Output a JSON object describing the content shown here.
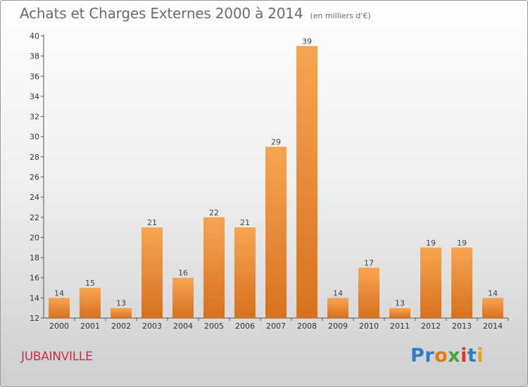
{
  "title": "Achats et Charges Externes 2000 à 2014",
  "unit": "(en milliers d'€)",
  "commune": "JUBAINVILLE",
  "logo": {
    "p1": "Pr",
    "p2": "o",
    "p3": "x",
    "p4": "i",
    "p5": "t",
    "p6": "i"
  },
  "colors": {
    "bar_light": "#f6a552",
    "bar_dark": "#d7711f",
    "axis": "#555555",
    "commune": "#c0304a"
  },
  "chart_data": {
    "type": "bar",
    "title": "Achats et Charges Externes 2000 à 2014",
    "categories": [
      "2000",
      "2001",
      "2002",
      "2003",
      "2004",
      "2005",
      "2006",
      "2007",
      "2008",
      "2009",
      "2010",
      "2011",
      "2012",
      "2013",
      "2014"
    ],
    "values": [
      14,
      15,
      13,
      21,
      16,
      22,
      21,
      29,
      39,
      14,
      17,
      13,
      19,
      19,
      14
    ],
    "ylim": [
      12,
      40
    ],
    "yticks": [
      12,
      14,
      16,
      18,
      20,
      22,
      24,
      26,
      28,
      30,
      32,
      34,
      36,
      38,
      40
    ],
    "grid": false
  }
}
